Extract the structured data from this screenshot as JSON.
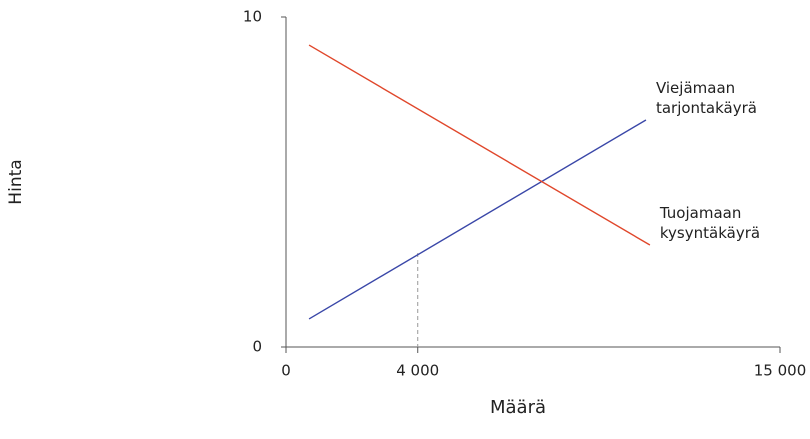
{
  "chart_data": {
    "type": "line",
    "x_label": "Määrä",
    "y_label": "Hinta",
    "xlim": [
      0,
      15000
    ],
    "ylim": [
      0,
      10
    ],
    "xticks": [
      0,
      {
        "value": 4000,
        "label": "4 000"
      },
      {
        "value": 15000,
        "label": "15 000"
      }
    ],
    "yticks": [
      0,
      10
    ],
    "series": [
      {
        "name_lines": [
          "Viejämaan",
          "tarjontakäyrä"
        ],
        "color": "#3a47a8",
        "x": [
          700,
          10930
        ],
        "values": [
          0.85,
          6.88
        ]
      },
      {
        "name_lines": [
          "Tuojamaan",
          "kysyntäkäyrä"
        ],
        "color": "#e0472b",
        "x": [
          700,
          11050
        ],
        "values": [
          9.15,
          3.09
        ]
      }
    ],
    "reference_lines": [
      {
        "x": 4000,
        "y": 2.85,
        "color": "#999999"
      }
    ]
  }
}
